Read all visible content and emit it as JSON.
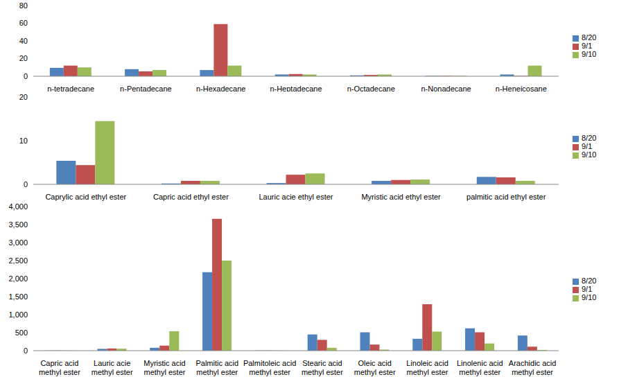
{
  "chart_data": [
    {
      "type": "bar",
      "categories": [
        "n-tetradecane",
        "n-Pentadecane",
        "n-Hexadecane",
        "n-Heptadecane",
        "n-Octadecane",
        "n-Nonadecane",
        "n-Heneicosane"
      ],
      "series": [
        {
          "name": "8/20",
          "color": "#4f81bd",
          "values": [
            9.5,
            8,
            7,
            2,
            1,
            0.5,
            2
          ]
        },
        {
          "name": "9/1",
          "color": "#c0504d",
          "values": [
            12,
            5.5,
            59,
            2.5,
            1.5,
            0.5,
            0.5
          ]
        },
        {
          "name": "9/10",
          "color": "#9bbb59",
          "values": [
            10,
            7,
            12,
            2,
            2,
            0.5,
            12
          ]
        }
      ],
      "ylim": [
        0,
        80
      ],
      "yticks": [
        0,
        20,
        40,
        60,
        80
      ],
      "grid": false,
      "legend": "right"
    },
    {
      "type": "bar",
      "categories": [
        "Caprylic acid ethyl ester",
        "Capric acid ethyl ester",
        "Lauric acie ethyl ester",
        "Myristic acid ethyl ester",
        "palmitic acid ethyl ester"
      ],
      "series": [
        {
          "name": "8/20",
          "color": "#4f81bd",
          "values": [
            5.4,
            0.2,
            0.3,
            0.8,
            1.7
          ]
        },
        {
          "name": "9/1",
          "color": "#c0504d",
          "values": [
            4.4,
            0.8,
            2.2,
            1,
            1.6
          ]
        },
        {
          "name": "9/10",
          "color": "#9bbb59",
          "values": [
            14.5,
            0.8,
            2.5,
            1.1,
            0.8
          ]
        }
      ],
      "ylim": [
        0,
        20
      ],
      "yticks": [
        0,
        10,
        20
      ],
      "grid": false,
      "legend": "right"
    },
    {
      "type": "bar",
      "categories": [
        "Capric acid methyl ester",
        "Lauric acie methyl ester",
        "Myristic acid methyl ester",
        "Palmitic acid methyl ester",
        "Palmitoleic acid methyl ester",
        "Stearic acid methyl ester",
        "Oleic acid methyl ester",
        "Linoleic acid methyl ester",
        "Linolenic acid methyl ester",
        "Arachidic acid methyl ester"
      ],
      "series": [
        {
          "name": "8/20",
          "color": "#4f81bd",
          "values": [
            5,
            50,
            80,
            2180,
            5,
            450,
            510,
            330,
            620,
            420
          ]
        },
        {
          "name": "9/1",
          "color": "#c0504d",
          "values": [
            5,
            60,
            140,
            3660,
            5,
            300,
            170,
            1290,
            510,
            110
          ]
        },
        {
          "name": "9/10",
          "color": "#9bbb59",
          "values": [
            5,
            55,
            540,
            2500,
            5,
            80,
            30,
            530,
            200,
            20
          ]
        }
      ],
      "ylim": [
        0,
        4000
      ],
      "yticks": [
        0,
        500,
        {
          "value": 1000,
          "label": "1,000"
        },
        {
          "value": 1500,
          "label": "1,500"
        },
        {
          "value": 2000,
          "label": "2,000"
        },
        {
          "value": 2500,
          "label": "2,500"
        },
        {
          "value": 3000,
          "label": "3,000"
        },
        {
          "value": 3500,
          "label": "3,500"
        },
        {
          "value": 4000,
          "label": "4,000"
        }
      ],
      "grid": false,
      "legend": "right"
    }
  ]
}
